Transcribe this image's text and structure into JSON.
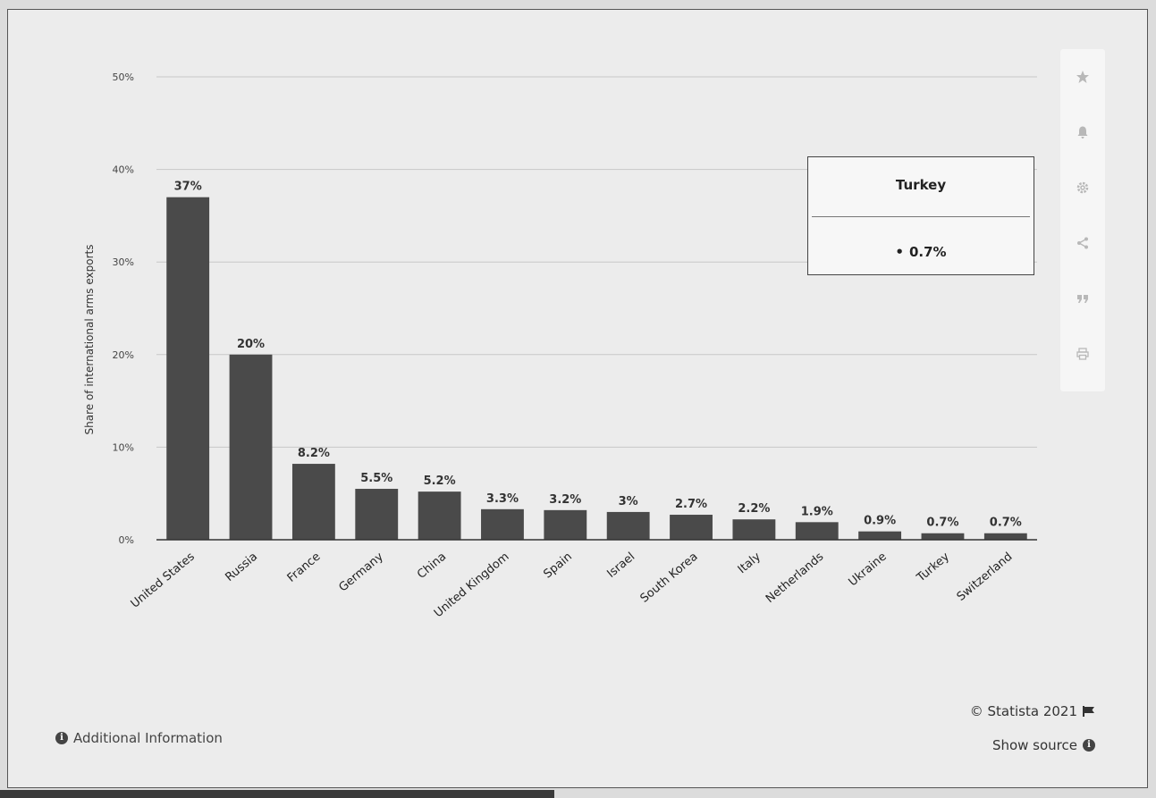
{
  "chart_data": {
    "type": "bar",
    "ylabel": "Share of international arms exports",
    "ylim": [
      0,
      50
    ],
    "yticks": [
      0,
      10,
      20,
      30,
      40,
      50
    ],
    "ytick_labels": [
      "0%",
      "10%",
      "20%",
      "30%",
      "40%",
      "50%"
    ],
    "categories": [
      "United States",
      "Russia",
      "France",
      "Germany",
      "China",
      "United Kingdom",
      "Spain",
      "Israel",
      "South Korea",
      "Italy",
      "Netherlands",
      "Ukraine",
      "Turkey",
      "Switzerland"
    ],
    "values": [
      37,
      20,
      8.2,
      5.5,
      5.2,
      3.3,
      3.2,
      3,
      2.7,
      2.2,
      1.9,
      0.9,
      0.7,
      0.7
    ],
    "value_labels": [
      "37%",
      "20%",
      "8.2%",
      "5.5%",
      "5.2%",
      "3.3%",
      "3.2%",
      "3%",
      "2.7%",
      "2.2%",
      "1.9%",
      "0.9%",
      "0.7%",
      "0.7%"
    ],
    "bar_color": "#4a4a4a",
    "grid": true
  },
  "tooltip": {
    "title": "Turkey",
    "value": "0.7%"
  },
  "toolbar": {
    "icons": [
      "star-icon",
      "bell-icon",
      "gear-icon",
      "share-icon",
      "quote-icon",
      "print-icon"
    ]
  },
  "footer": {
    "additional_info": "Additional Information",
    "credit": "© Statista 2021",
    "show_source": "Show source"
  }
}
